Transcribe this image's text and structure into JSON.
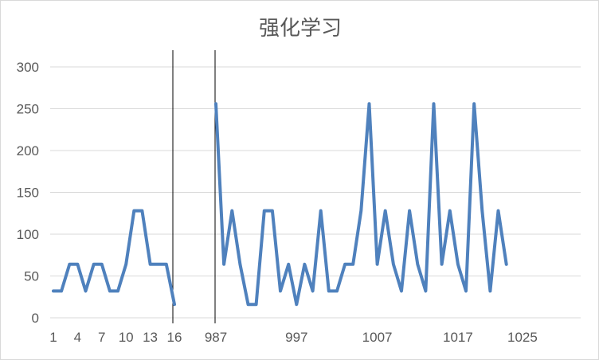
{
  "chart_data": {
    "type": "line",
    "title": "强化学习",
    "xlabel": "",
    "ylabel": "",
    "ylim": [
      0,
      300
    ],
    "y_ticks": [
      0,
      50,
      100,
      150,
      200,
      250,
      300
    ],
    "grid": true,
    "legend": "none",
    "broken_x_axis": true,
    "x_ticks_visible": [
      "1",
      "4",
      "7",
      "10",
      "13",
      "16",
      "987",
      "997",
      "1007",
      "1017",
      "1025"
    ],
    "colors": {
      "line": "#4f81bd",
      "grid": "#d9d9d9",
      "text": "#595959",
      "break_line": "#000000"
    },
    "segments": [
      {
        "x": [
          1,
          2,
          3,
          4,
          5,
          6,
          7,
          8,
          9,
          10,
          11,
          12,
          13,
          14,
          15,
          16
        ],
        "values": [
          32,
          32,
          64,
          64,
          32,
          64,
          64,
          32,
          32,
          64,
          128,
          128,
          64,
          64,
          64,
          16
        ]
      },
      {
        "x": [
          987,
          988,
          989,
          990,
          991,
          992,
          993,
          994,
          995,
          996,
          997,
          998,
          999,
          1000,
          1001,
          1002,
          1003,
          1004,
          1005,
          1006,
          1007,
          1008,
          1009,
          1010,
          1011,
          1012,
          1013,
          1014,
          1015,
          1016,
          1017,
          1018,
          1019,
          1020,
          1021,
          1022,
          1023,
          1024,
          1025
        ],
        "values": [
          256,
          64,
          128,
          64,
          16,
          16,
          128,
          128,
          32,
          64,
          16,
          64,
          32,
          128,
          32,
          32,
          64,
          64,
          128,
          256,
          64,
          128,
          64,
          32,
          128,
          64,
          32,
          256,
          64,
          128,
          64,
          32,
          256,
          128,
          32,
          128,
          64,
          null,
          null
        ]
      }
    ]
  }
}
